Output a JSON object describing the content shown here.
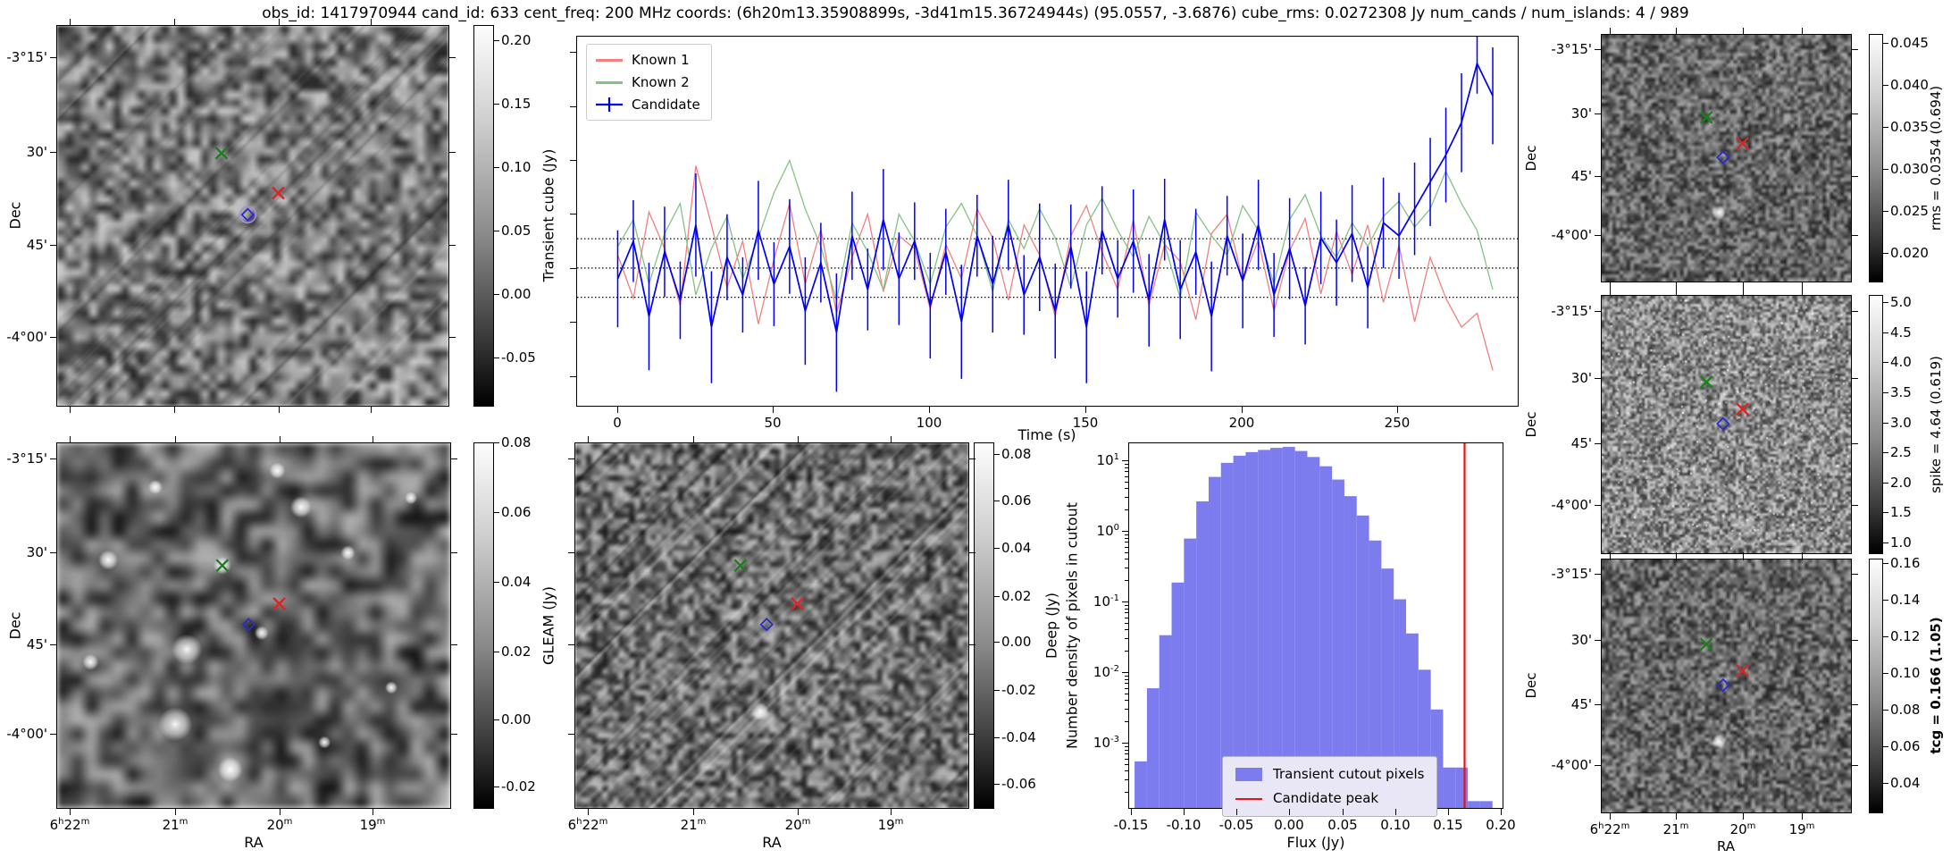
{
  "title": "obs_id: 1417970944 cand_id: 633 cent_freq: 200 MHz coords: (6h20m13.35908899s, -3d41m15.36724944s) (95.0557, -3.6876) cube_rms: 0.0272308 Jy num_cands / num_islands: 4 / 989",
  "labels": {
    "dec": "Dec",
    "ra": "RA",
    "time": "Time (s)",
    "flux": "Flux (Jy)",
    "hist_y": "Number density of pixels in cutout"
  },
  "ticks": {
    "dec": [
      "-3°15'",
      "30'",
      "45'",
      "-4°00'"
    ],
    "ra": [
      "6h22m",
      "21m",
      "20m",
      "19m"
    ],
    "lc_x": [
      "0",
      "50",
      "100",
      "150",
      "200",
      "250"
    ],
    "hist_x": [
      "-0.15",
      "-0.10",
      "-0.05",
      "0.00",
      "0.05",
      "0.10",
      "0.15",
      "0.20"
    ],
    "hist_y": [
      "10^1",
      "10^0",
      "10^-1",
      "10^-2",
      "10^-3"
    ]
  },
  "colorbars": {
    "transient": {
      "label": "Transient cube (Jy)",
      "ticks": [
        "0.20",
        "0.15",
        "0.10",
        "0.05",
        "0.00",
        "-0.05"
      ]
    },
    "gleam": {
      "label": "GLEAM (Jy)",
      "ticks": [
        "0.08",
        "0.06",
        "0.04",
        "0.02",
        "0.00",
        "-0.02"
      ]
    },
    "deep": {
      "label": "Deep (Jy)",
      "ticks": [
        "0.08",
        "0.06",
        "0.04",
        "0.02",
        "0.00",
        "-0.02",
        "-0.04",
        "-0.06"
      ]
    },
    "rms": {
      "label": "rms = 0.0354 (0.694)",
      "ticks": [
        "0.045",
        "0.040",
        "0.035",
        "0.030",
        "0.025",
        "0.020"
      ]
    },
    "spike": {
      "label": "spike = 4.64 (0.619)",
      "ticks": [
        "5.0",
        "4.5",
        "4.0",
        "3.5",
        "3.0",
        "2.5",
        "2.0",
        "1.5",
        "1.0"
      ]
    },
    "tcg": {
      "label": "tcg = 0.166 (1.05)",
      "ticks": [
        "0.16",
        "0.14",
        "0.12",
        "0.10",
        "0.08",
        "0.06",
        "0.04"
      ]
    }
  },
  "legend_lc": {
    "known1": "Known 1",
    "known2": "Known 2",
    "candidate": "Candidate"
  },
  "legend_hist": {
    "pixels": "Transient cutout pixels",
    "peak": "Candidate peak"
  },
  "colors": {
    "known1": "#f37f7f",
    "known2": "#85c285",
    "candidate": "#0000ee",
    "hist_bar": "#7c7cee",
    "peak_line": "#ee1111",
    "marker_green": "#1e7d1e",
    "marker_red": "#d62728",
    "marker_blue": "#2a2ad0"
  },
  "markers": [
    {
      "name": "known-2-position",
      "shape": "x",
      "color_key": "marker_green",
      "fx": 0.42,
      "fy": 0.335
    },
    {
      "name": "known-1-position",
      "shape": "x",
      "color_key": "marker_red",
      "fx": 0.565,
      "fy": 0.44
    },
    {
      "name": "candidate-position",
      "shape": "diamond",
      "color_key": "marker_blue",
      "fx": 0.487,
      "fy": 0.497
    }
  ],
  "chart_data": [
    {
      "type": "line",
      "title": "Light curves at candidate and known source positions",
      "xlabel": "Time (s)",
      "ylabel": "Transient cube (Jy)",
      "xlim": [
        -13,
        288
      ],
      "ylim": [
        -0.128,
        0.215
      ],
      "threshold_lines": [
        0.0272,
        0.0,
        -0.0272
      ],
      "legend_position": "upper left",
      "x": [
        0,
        5,
        10,
        15,
        20,
        25,
        30,
        35,
        40,
        45,
        50,
        55,
        60,
        65,
        70,
        75,
        80,
        85,
        90,
        95,
        100,
        105,
        110,
        115,
        120,
        125,
        130,
        135,
        140,
        145,
        150,
        155,
        160,
        165,
        170,
        175,
        180,
        185,
        190,
        195,
        200,
        205,
        210,
        215,
        220,
        225,
        230,
        235,
        240,
        245,
        250,
        255,
        260,
        265,
        270,
        275,
        280
      ],
      "series": [
        {
          "name": "Known 1",
          "values": [
            0.012,
            -0.028,
            0.052,
            0.018,
            -0.035,
            0.095,
            0.04,
            -0.018,
            0.025,
            -0.052,
            0.008,
            0.06,
            -0.015,
            0.036,
            -0.042,
            0.01,
            0.05,
            -0.022,
            0.03,
            0.018,
            -0.038,
            0.022,
            -0.01,
            0.055,
            0.028,
            -0.03,
            0.04,
            0.012,
            -0.045,
            0.03,
            0.058,
            0.015,
            -0.02,
            0.045,
            -0.035,
            0.022,
            0.006,
            -0.048,
            0.032,
            0.05,
            -0.012,
            0.026,
            -0.04,
            0.016,
            0.046,
            -0.024,
            0.034,
            -0.006,
            0.04,
            -0.032,
            0.021,
            -0.05,
            0.01,
            -0.028,
            -0.055,
            -0.042,
            -0.095
          ]
        },
        {
          "name": "Known 2",
          "values": [
            0.02,
            0.045,
            -0.015,
            0.032,
            0.06,
            -0.025,
            0.018,
            0.048,
            -0.01,
            0.028,
            0.07,
            0.1,
            0.055,
            0.02,
            -0.03,
            0.042,
            0.015,
            -0.02,
            0.05,
            0.025,
            -0.015,
            0.038,
            0.06,
            0.03,
            -0.022,
            0.045,
            0.018,
            0.055,
            0.028,
            -0.018,
            0.04,
            0.065,
            0.035,
            0.01,
            0.048,
            0.022,
            -0.028,
            0.052,
            0.03,
            0.012,
            0.058,
            0.035,
            -0.015,
            0.045,
            0.068,
            0.03,
            0.01,
            0.042,
            0.02,
            0.048,
            0.062,
            0.038,
            0.055,
            0.09,
            0.06,
            0.035,
            -0.02
          ]
        },
        {
          "name": "Candidate",
          "values": [
            -0.01,
            0.025,
            -0.045,
            0.015,
            -0.03,
            0.04,
            -0.055,
            0.01,
            -0.025,
            0.035,
            -0.015,
            0.02,
            -0.04,
            0.005,
            -0.06,
            0.03,
            -0.02,
            0.045,
            -0.01,
            0.025,
            -0.035,
            0.015,
            -0.05,
            0.03,
            -0.015,
            0.04,
            -0.025,
            0.01,
            -0.04,
            0.02,
            -0.055,
            0.035,
            -0.01,
            0.025,
            -0.03,
            0.045,
            -0.02,
            0.015,
            -0.045,
            0.03,
            -0.012,
            0.04,
            -0.025,
            0.018,
            -0.035,
            0.028,
            0.005,
            0.032,
            -0.018,
            0.042,
            0.03,
            0.055,
            0.08,
            0.105,
            0.135,
            0.19,
            0.16
          ],
          "errors": [
            0.045,
            0.038,
            0.05,
            0.042,
            0.036,
            0.048,
            0.052,
            0.04,
            0.035,
            0.046,
            0.039,
            0.044,
            0.05,
            0.037,
            0.055,
            0.041,
            0.038,
            0.047,
            0.043,
            0.036,
            0.049,
            0.04,
            0.053,
            0.038,
            0.045,
            0.042,
            0.037,
            0.05,
            0.044,
            0.039,
            0.052,
            0.041,
            0.036,
            0.048,
            0.043,
            0.038,
            0.046,
            0.04,
            0.051,
            0.037,
            0.044,
            0.042,
            0.039,
            0.047,
            0.036,
            0.043,
            0.04,
            0.045,
            0.038,
            0.042,
            0.04,
            0.043,
            0.041,
            0.044,
            0.046,
            0.028,
            0.045
          ]
        }
      ]
    },
    {
      "type": "bar",
      "title": "Flux distribution of transient cutout pixels",
      "xlabel": "Flux (Jy)",
      "ylabel": "Number density of pixels in cutout",
      "yscale": "log",
      "xlim": [
        -0.152,
        0.202
      ],
      "ylim": [
        0.00012,
        18
      ],
      "bin_width": 0.0117,
      "bin_centers": [
        -0.141,
        -0.1293,
        -0.1176,
        -0.1059,
        -0.0942,
        -0.0825,
        -0.0708,
        -0.0591,
        -0.0474,
        -0.0357,
        -0.024,
        -0.0123,
        -0.0006,
        0.0111,
        0.0228,
        0.0345,
        0.0462,
        0.0579,
        0.0696,
        0.0813,
        0.093,
        0.1047,
        0.1164,
        0.1281,
        0.1398,
        0.1515,
        0.1632,
        0.1749,
        0.1866
      ],
      "densities": [
        0.00055,
        0.006,
        0.034,
        0.19,
        0.8,
        2.7,
        6.0,
        9.5,
        12,
        13.5,
        14.5,
        15.5,
        16,
        14,
        11.5,
        8.5,
        5.5,
        3.2,
        1.7,
        0.75,
        0.3,
        0.11,
        0.036,
        0.011,
        0.003,
        0.00045,
        0.00045,
        0.00015,
        0.00015
      ],
      "candidate_peak": 0.166
    }
  ]
}
